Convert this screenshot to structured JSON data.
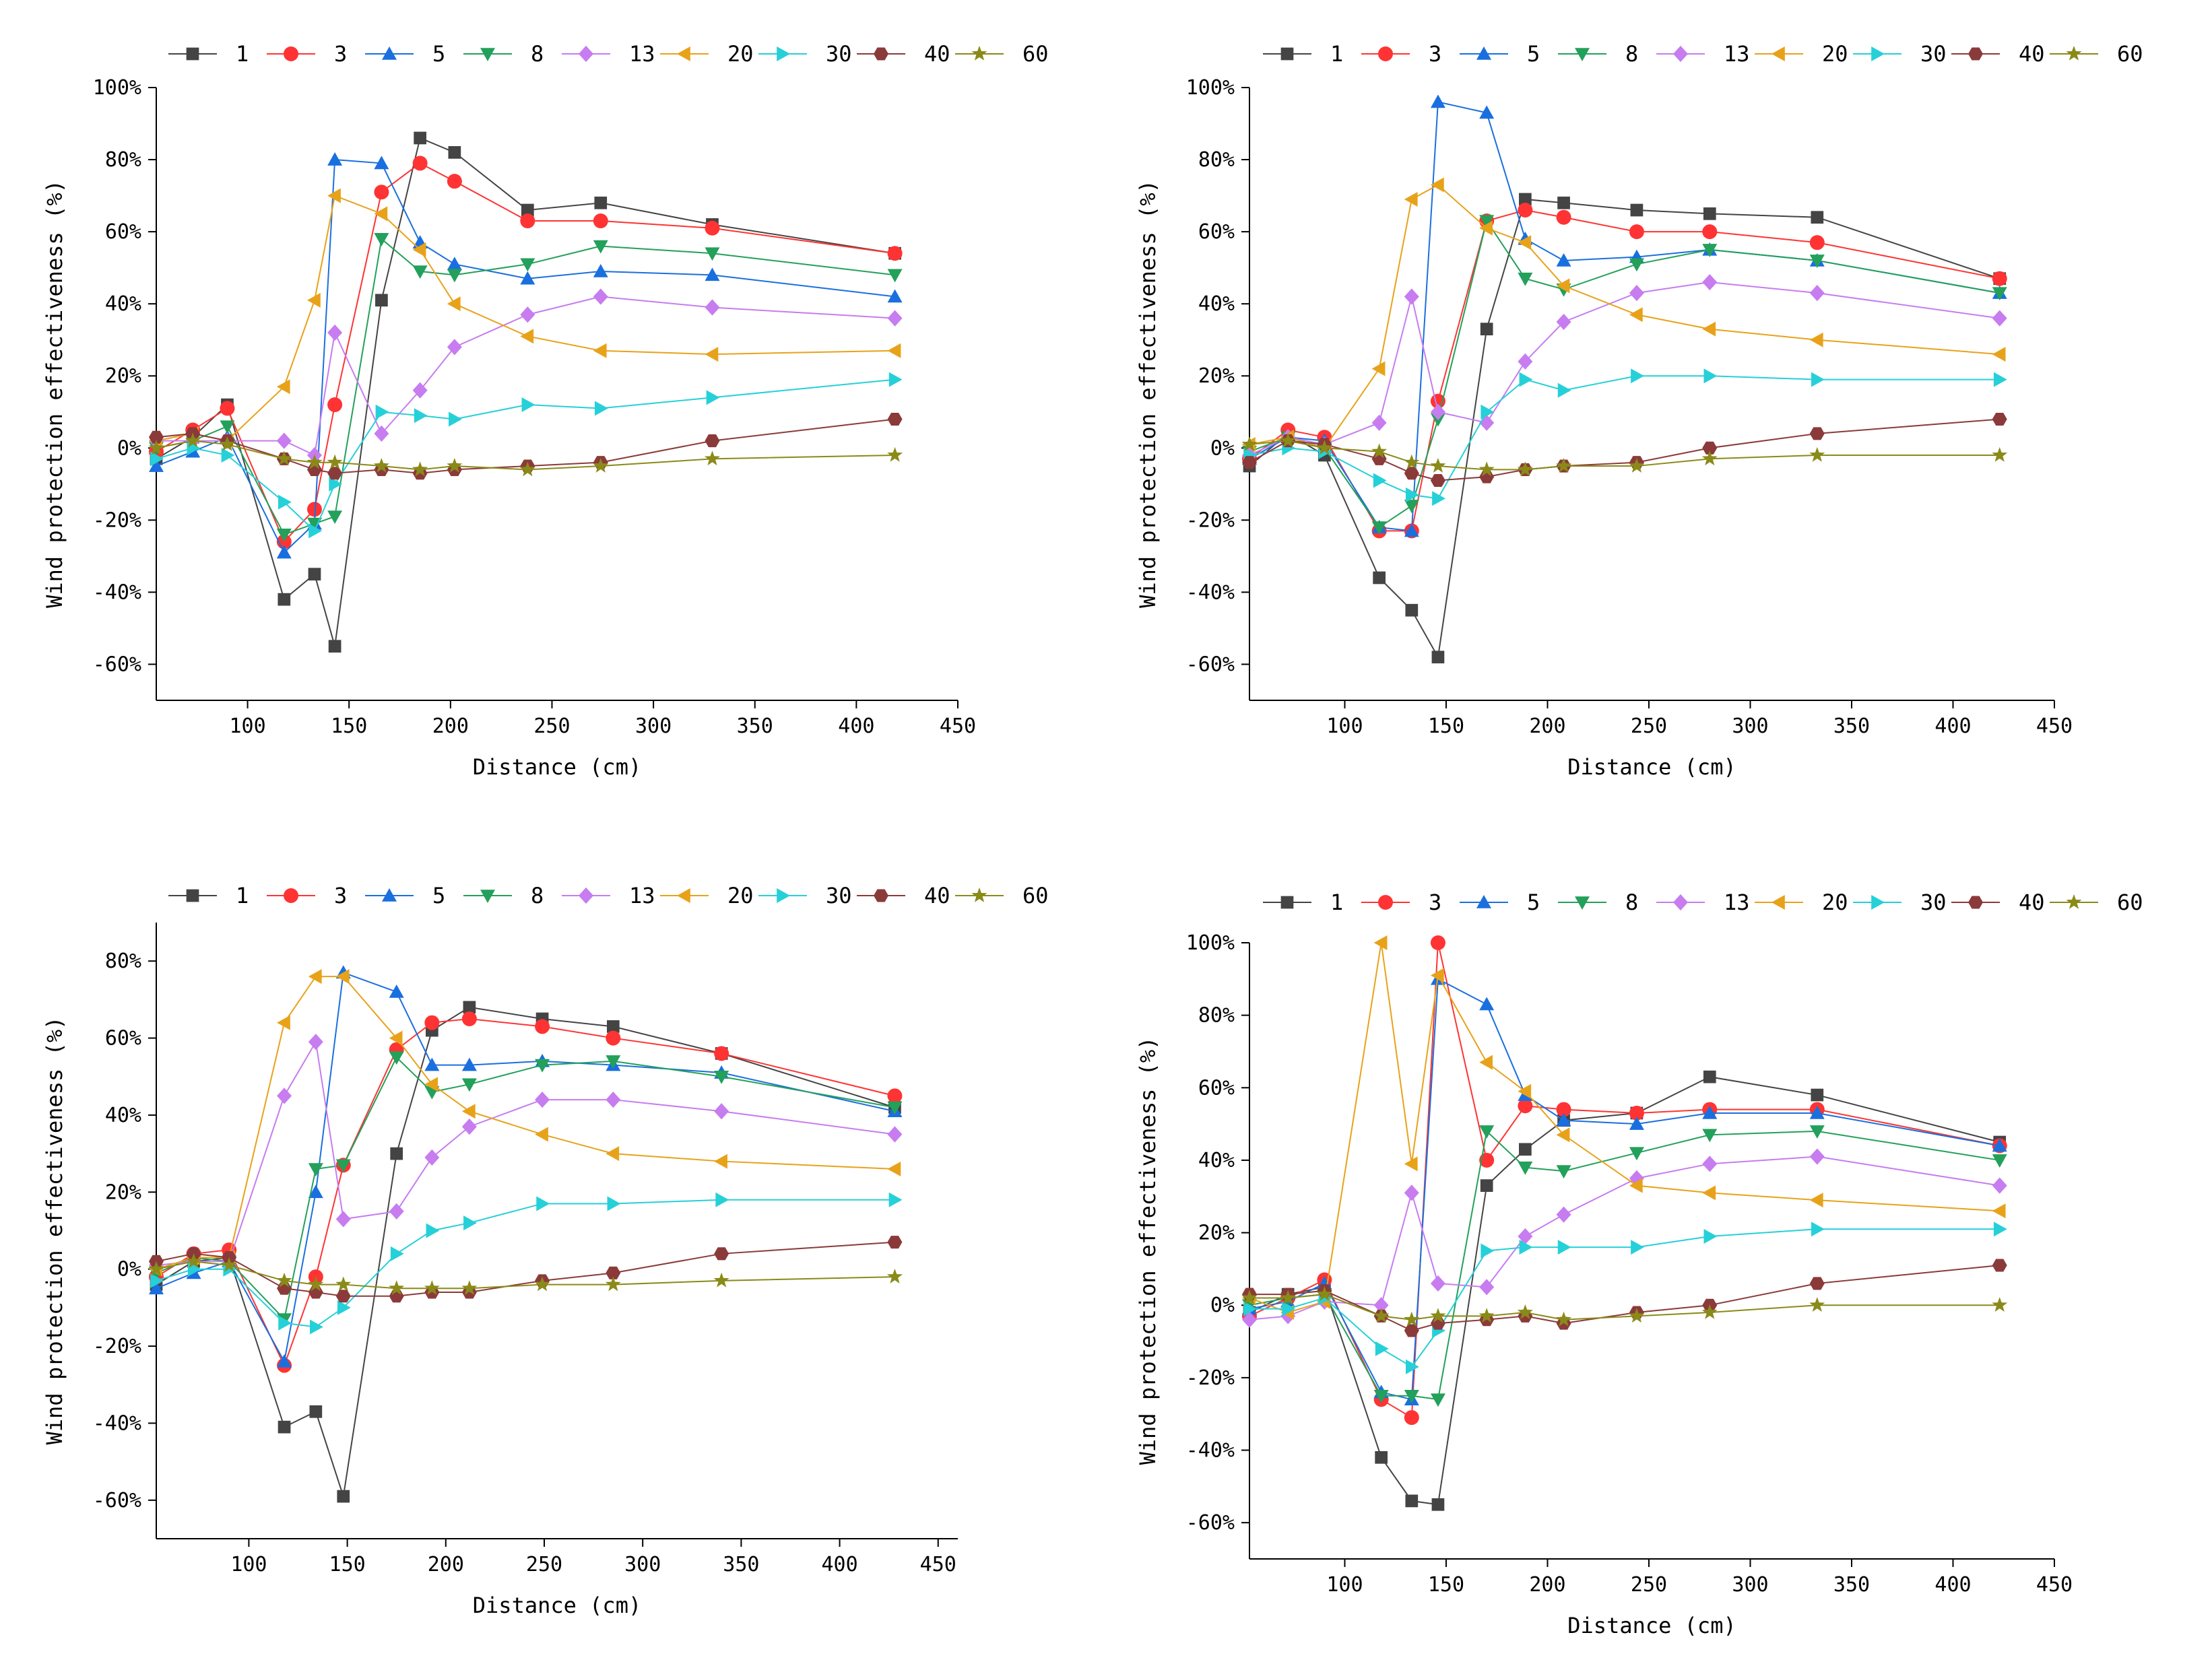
{
  "legend_labels": [
    "1",
    "3",
    "5",
    "8",
    "13",
    "20",
    "30",
    "40",
    "60"
  ],
  "series_styles": [
    {
      "color": "#444444",
      "marker": "square"
    },
    {
      "color": "#ff3333",
      "marker": "circle"
    },
    {
      "color": "#1a6fdf",
      "marker": "triangle-up"
    },
    {
      "color": "#23a05a",
      "marker": "triangle-down"
    },
    {
      "color": "#c77cf0",
      "marker": "diamond"
    },
    {
      "color": "#e8a21a",
      "marker": "triangle-left"
    },
    {
      "color": "#26d0d8",
      "marker": "triangle-right"
    },
    {
      "color": "#8b3a3a",
      "marker": "hexagon"
    },
    {
      "color": "#8a8a18",
      "marker": "star"
    }
  ],
  "chart_data": [
    {
      "type": "line",
      "xlabel": "Distance (cm)",
      "ylabel": "Wind protection effectiveness (%)",
      "xlim": [
        55,
        450
      ],
      "ylim": [
        -70,
        100
      ],
      "xticks": [
        100,
        150,
        200,
        250,
        300,
        350,
        400,
        450
      ],
      "xtick_labels": [
        "100",
        "150",
        "200",
        "250",
        "300",
        "350",
        "400",
        "450"
      ],
      "yticks": [
        -60,
        -40,
        -20,
        0,
        20,
        40,
        60,
        80,
        100
      ],
      "ytick_labels": [
        "-60%",
        "-40%",
        "-20%",
        "0%",
        "20%",
        "40%",
        "60%",
        "80%",
        "100%"
      ],
      "x": [
        55,
        73,
        90,
        118,
        133,
        143,
        166,
        185,
        202,
        238,
        274,
        329,
        419
      ],
      "series": [
        {
          "name": "1",
          "values": [
            -3,
            3,
            12,
            -42,
            -35,
            -55,
            41,
            86,
            82,
            66,
            68,
            62,
            54
          ]
        },
        {
          "name": "3",
          "values": [
            -1,
            5,
            11,
            -26,
            -17,
            12,
            71,
            79,
            74,
            63,
            63,
            61,
            54
          ]
        },
        {
          "name": "5",
          "values": [
            -5,
            -1,
            3,
            -29,
            -21,
            80,
            79,
            57,
            51,
            47,
            49,
            48,
            42
          ]
        },
        {
          "name": "8",
          "values": [
            0,
            2,
            6,
            -24,
            -21,
            -19,
            58,
            49,
            48,
            51,
            56,
            54,
            48
          ]
        },
        {
          "name": "13",
          "values": [
            2,
            2,
            2,
            2,
            -2,
            32,
            4,
            16,
            28,
            37,
            42,
            39,
            36
          ]
        },
        {
          "name": "20",
          "values": [
            2,
            4,
            2,
            17,
            41,
            70,
            65,
            55,
            40,
            31,
            27,
            26,
            27
          ]
        },
        {
          "name": "30",
          "values": [
            -3,
            0,
            -2,
            -15,
            -23,
            -10,
            10,
            9,
            8,
            12,
            11,
            14,
            19
          ]
        },
        {
          "name": "40",
          "values": [
            3,
            4,
            2,
            -3,
            -6,
            -7,
            -6,
            -7,
            -6,
            -5,
            -4,
            2,
            8
          ]
        },
        {
          "name": "60",
          "values": [
            0,
            2,
            1,
            -3,
            -4,
            -4,
            -5,
            -6,
            -5,
            -6,
            -5,
            -3,
            -2
          ]
        }
      ]
    },
    {
      "type": "line",
      "xlabel": "Distance (cm)",
      "ylabel": "Wind protection effectiveness (%)",
      "xlim": [
        53,
        450
      ],
      "ylim": [
        -70,
        100
      ],
      "xticks": [
        100,
        150,
        200,
        250,
        300,
        350,
        400,
        450
      ],
      "xtick_labels": [
        "100",
        "150",
        "200",
        "250",
        "300",
        "350",
        "400",
        "450"
      ],
      "yticks": [
        -60,
        -40,
        -20,
        0,
        20,
        40,
        60,
        80,
        100
      ],
      "ytick_labels": [
        "-60%",
        "-40%",
        "-20%",
        "0%",
        "20%",
        "40%",
        "60%",
        "80%",
        "100%"
      ],
      "x": [
        53,
        72,
        90,
        117,
        133,
        146,
        170,
        189,
        208,
        244,
        280,
        333,
        423
      ],
      "series": [
        {
          "name": "1",
          "values": [
            -5,
            4,
            -2,
            -36,
            -45,
            -58,
            33,
            69,
            68,
            66,
            65,
            64,
            47
          ]
        },
        {
          "name": "3",
          "values": [
            -3,
            5,
            3,
            -23,
            -23,
            13,
            63,
            66,
            64,
            60,
            60,
            57,
            47
          ]
        },
        {
          "name": "5",
          "values": [
            -3,
            3,
            2,
            -22,
            -23,
            96,
            93,
            58,
            52,
            53,
            55,
            52,
            43
          ]
        },
        {
          "name": "8",
          "values": [
            -1,
            3,
            0,
            -22,
            -16,
            8,
            63,
            47,
            44,
            51,
            55,
            52,
            43
          ]
        },
        {
          "name": "13",
          "values": [
            -2,
            3,
            1,
            7,
            42,
            10,
            7,
            24,
            35,
            43,
            46,
            43,
            36
          ]
        },
        {
          "name": "20",
          "values": [
            1,
            3,
            0,
            22,
            69,
            73,
            61,
            57,
            45,
            37,
            33,
            30,
            26
          ]
        },
        {
          "name": "30",
          "values": [
            -2,
            0,
            -1,
            -9,
            -13,
            -14,
            10,
            19,
            16,
            20,
            20,
            19,
            19
          ]
        },
        {
          "name": "40",
          "values": [
            -4,
            2,
            1,
            -3,
            -7,
            -9,
            -8,
            -6,
            -5,
            -4,
            0,
            4,
            8
          ]
        },
        {
          "name": "60",
          "values": [
            1,
            2,
            0,
            -1,
            -4,
            -5,
            -6,
            -6,
            -5,
            -5,
            -3,
            -2,
            -2
          ]
        }
      ]
    },
    {
      "type": "line",
      "xlabel": "Distance (cm)",
      "ylabel": "Wind protection effectiveness (%)",
      "xlim": [
        53,
        460
      ],
      "ylim": [
        -70,
        90
      ],
      "xticks": [
        100,
        150,
        200,
        250,
        300,
        350,
        400,
        450
      ],
      "xtick_labels": [
        "100",
        "150",
        "200",
        "250",
        "300",
        "350",
        "400",
        "450"
      ],
      "yticks": [
        -60,
        -40,
        -20,
        0,
        20,
        40,
        60,
        80
      ],
      "ytick_labels": [
        "-60%",
        "-40%",
        "-20%",
        "0%",
        "20%",
        "40%",
        "60%",
        "80%"
      ],
      "x": [
        53,
        72,
        90,
        118,
        134,
        148,
        175,
        193,
        212,
        249,
        285,
        340,
        428
      ],
      "series": [
        {
          "name": "1",
          "values": [
            -4,
            2,
            3,
            -41,
            -37,
            -59,
            30,
            62,
            68,
            65,
            63,
            56,
            42
          ]
        },
        {
          "name": "3",
          "values": [
            -2,
            4,
            5,
            -25,
            -2,
            27,
            57,
            64,
            65,
            63,
            60,
            56,
            45
          ]
        },
        {
          "name": "5",
          "values": [
            -5,
            -1,
            2,
            -24,
            20,
            77,
            72,
            53,
            53,
            54,
            53,
            51,
            41
          ]
        },
        {
          "name": "8",
          "values": [
            -1,
            3,
            2,
            -13,
            26,
            27,
            55,
            46,
            48,
            53,
            54,
            50,
            42
          ]
        },
        {
          "name": "13",
          "values": [
            1,
            2,
            2,
            45,
            59,
            13,
            15,
            29,
            37,
            44,
            44,
            41,
            35
          ]
        },
        {
          "name": "20",
          "values": [
            0,
            3,
            3,
            64,
            76,
            76,
            60,
            48,
            41,
            35,
            30,
            28,
            26
          ]
        },
        {
          "name": "30",
          "values": [
            -3,
            0,
            0,
            -14,
            -15,
            -10,
            4,
            10,
            12,
            17,
            17,
            18,
            18
          ]
        },
        {
          "name": "40",
          "values": [
            2,
            4,
            3,
            -5,
            -6,
            -7,
            -7,
            -6,
            -6,
            -3,
            -1,
            4,
            7
          ]
        },
        {
          "name": "60",
          "values": [
            0,
            2,
            1,
            -3,
            -4,
            -4,
            -5,
            -5,
            -5,
            -4,
            -4,
            -3,
            -2
          ]
        }
      ]
    },
    {
      "type": "line",
      "xlabel": "Distance (cm)",
      "ylabel": "Wind protection effectiveness (%)",
      "xlim": [
        53,
        450
      ],
      "ylim": [
        -70,
        100
      ],
      "xticks": [
        100,
        150,
        200,
        250,
        300,
        350,
        400,
        450
      ],
      "xtick_labels": [
        "100",
        "150",
        "200",
        "250",
        "300",
        "350",
        "400",
        "450"
      ],
      "yticks": [
        -60,
        -40,
        -20,
        0,
        20,
        40,
        60,
        80,
        100
      ],
      "ytick_labels": [
        "-60%",
        "-40%",
        "-20%",
        "0%",
        "20%",
        "40%",
        "60%",
        "80%",
        "100%"
      ],
      "x": [
        53,
        72,
        90,
        118,
        133,
        146,
        170,
        189,
        208,
        244,
        280,
        333,
        423
      ],
      "series": [
        {
          "name": "1",
          "values": [
            -2,
            3,
            5,
            -42,
            -54,
            -55,
            33,
            43,
            51,
            53,
            63,
            58,
            45
          ]
        },
        {
          "name": "3",
          "values": [
            -3,
            2,
            7,
            -26,
            -31,
            100,
            40,
            55,
            54,
            53,
            54,
            54,
            44
          ]
        },
        {
          "name": "5",
          "values": [
            -1,
            1,
            6,
            -24,
            -26,
            90,
            83,
            58,
            51,
            50,
            53,
            53,
            44
          ]
        },
        {
          "name": "8",
          "values": [
            0,
            2,
            3,
            -25,
            -25,
            -26,
            48,
            38,
            37,
            42,
            47,
            48,
            40
          ]
        },
        {
          "name": "13",
          "values": [
            -4,
            -3,
            1,
            0,
            31,
            6,
            5,
            19,
            25,
            35,
            39,
            41,
            33
          ]
        },
        {
          "name": "20",
          "values": [
            2,
            -2,
            1,
            100,
            39,
            91,
            67,
            59,
            47,
            33,
            31,
            29,
            26
          ]
        },
        {
          "name": "30",
          "values": [
            -1,
            -1,
            2,
            -12,
            -17,
            -7,
            15,
            16,
            16,
            16,
            19,
            21,
            21
          ]
        },
        {
          "name": "40",
          "values": [
            3,
            3,
            4,
            -3,
            -7,
            -5,
            -4,
            -3,
            -5,
            -2,
            0,
            6,
            11
          ]
        },
        {
          "name": "60",
          "values": [
            2,
            2,
            3,
            -3,
            -4,
            -3,
            -3,
            -2,
            -4,
            -3,
            -2,
            0,
            0
          ]
        }
      ]
    }
  ]
}
